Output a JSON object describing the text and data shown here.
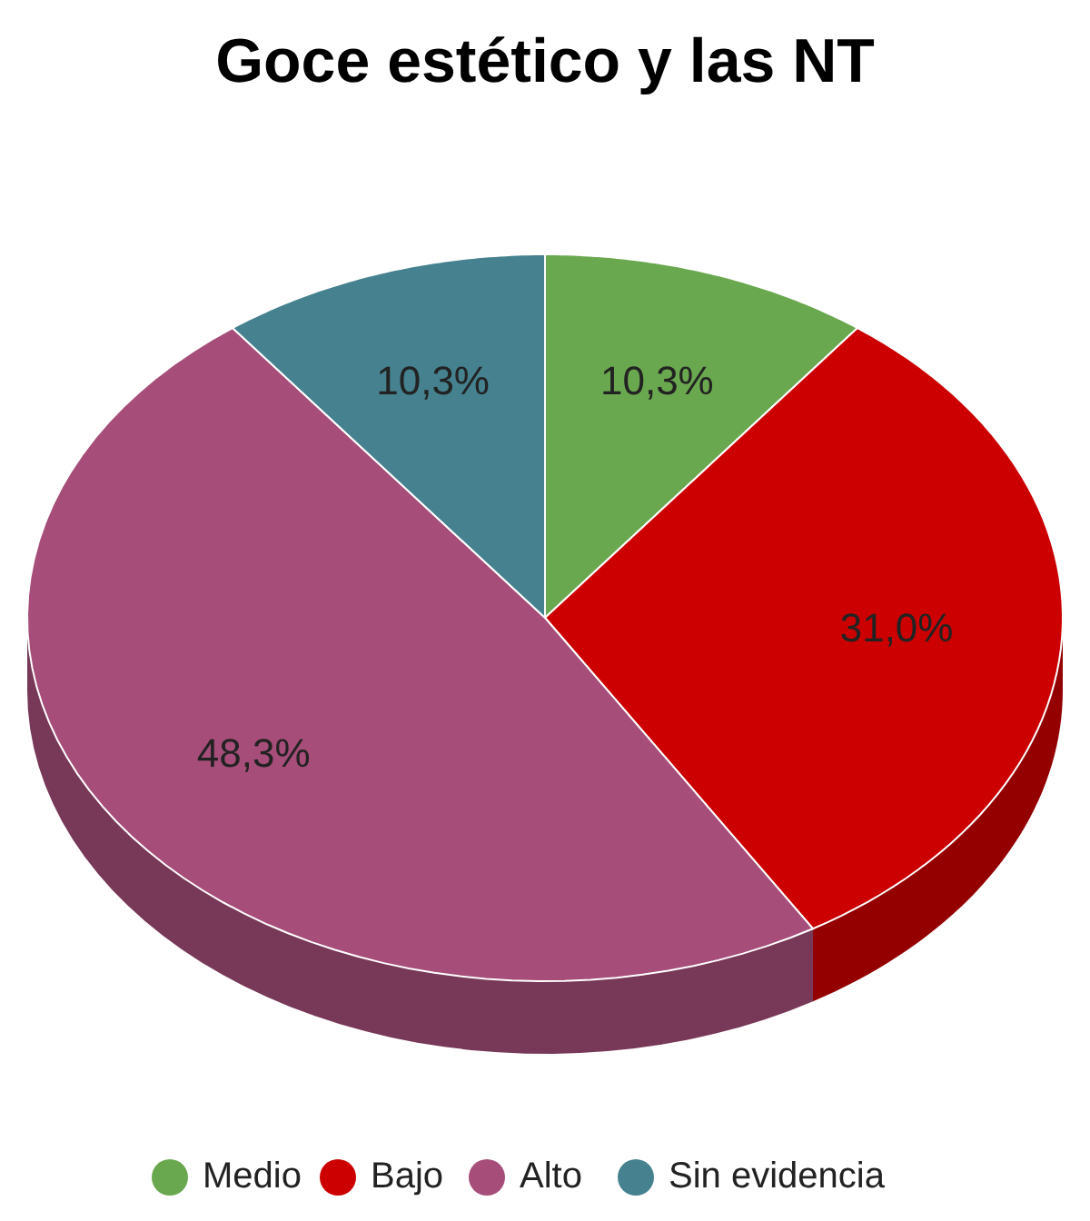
{
  "chart_data": {
    "type": "pie",
    "title": "Goce estético y las NT",
    "categories": [
      "Medio",
      "Bajo",
      "Alto",
      "Sin evidencia"
    ],
    "values": [
      10.3,
      31.0,
      48.3,
      10.3
    ],
    "value_labels": [
      "10,3%",
      "31,0%",
      "48,3%",
      "10,3%"
    ],
    "colors": [
      "#6aa84f",
      "#cc0000",
      "#a64d79",
      "#45818e"
    ],
    "legend": "bottom"
  }
}
